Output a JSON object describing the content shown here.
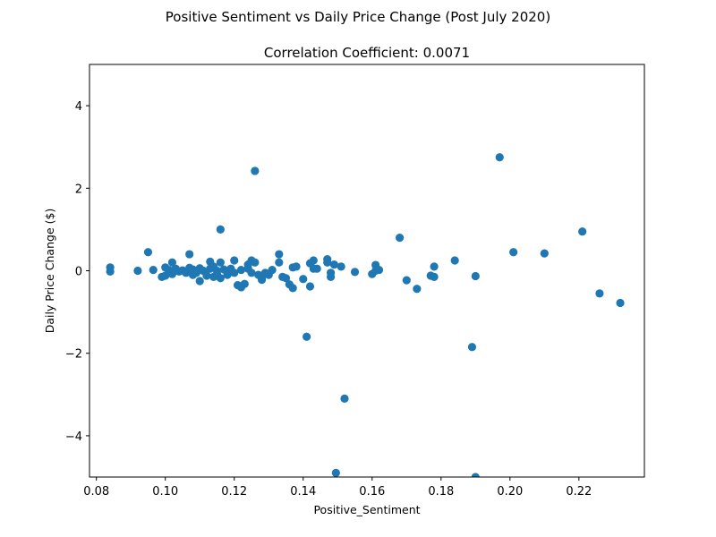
{
  "chart_data": {
    "type": "scatter",
    "suptitle": "Positive Sentiment vs Daily Price Change (Post July 2020)",
    "title": "Correlation Coefficient: 0.0071",
    "xlabel": "Positive_Sentiment",
    "ylabel": "Daily Price Change ($)",
    "xlim": [
      0.078,
      0.239
    ],
    "ylim": [
      -5,
      5
    ],
    "xticks": [
      0.08,
      0.1,
      0.12,
      0.14,
      0.16,
      0.18,
      0.2,
      0.22
    ],
    "xtick_labels": [
      "0.08",
      "0.10",
      "0.12",
      "0.14",
      "0.16",
      "0.18",
      "0.20",
      "0.22"
    ],
    "yticks": [
      -4,
      -2,
      0,
      2,
      4
    ],
    "ytick_labels": [
      "−4",
      "−2",
      "0",
      "2",
      "4"
    ],
    "grid": false,
    "marker_color": "#1f77b4",
    "points": [
      {
        "x": 0.084,
        "y": 0.08
      },
      {
        "x": 0.084,
        "y": -0.02
      },
      {
        "x": 0.092,
        "y": 0.0
      },
      {
        "x": 0.095,
        "y": 0.45
      },
      {
        "x": 0.0965,
        "y": 0.02
      },
      {
        "x": 0.099,
        "y": -0.15
      },
      {
        "x": 0.1,
        "y": 0.08
      },
      {
        "x": 0.1,
        "y": -0.12
      },
      {
        "x": 0.101,
        "y": 0.02
      },
      {
        "x": 0.102,
        "y": -0.08
      },
      {
        "x": 0.102,
        "y": 0.2
      },
      {
        "x": 0.103,
        "y": 0.05
      },
      {
        "x": 0.104,
        "y": -0.02
      },
      {
        "x": 0.105,
        "y": 0.01
      },
      {
        "x": 0.106,
        "y": -0.05
      },
      {
        "x": 0.107,
        "y": 0.07
      },
      {
        "x": 0.107,
        "y": 0.4
      },
      {
        "x": 0.108,
        "y": -0.1
      },
      {
        "x": 0.108,
        "y": 0.03
      },
      {
        "x": 0.109,
        "y": -0.05
      },
      {
        "x": 0.11,
        "y": 0.06
      },
      {
        "x": 0.11,
        "y": -0.25
      },
      {
        "x": 0.111,
        "y": 0.0
      },
      {
        "x": 0.112,
        "y": -0.12
      },
      {
        "x": 0.113,
        "y": 0.22
      },
      {
        "x": 0.113,
        "y": 0.05
      },
      {
        "x": 0.114,
        "y": -0.15
      },
      {
        "x": 0.114,
        "y": 0.1
      },
      {
        "x": 0.115,
        "y": 0.0
      },
      {
        "x": 0.115,
        "y": -0.08
      },
      {
        "x": 0.116,
        "y": 1.0
      },
      {
        "x": 0.116,
        "y": 0.2
      },
      {
        "x": 0.116,
        "y": -0.18
      },
      {
        "x": 0.117,
        "y": 0.03
      },
      {
        "x": 0.118,
        "y": -0.1
      },
      {
        "x": 0.119,
        "y": 0.05
      },
      {
        "x": 0.12,
        "y": 0.25
      },
      {
        "x": 0.12,
        "y": -0.05
      },
      {
        "x": 0.121,
        "y": -0.35
      },
      {
        "x": 0.122,
        "y": 0.02
      },
      {
        "x": 0.122,
        "y": -0.4
      },
      {
        "x": 0.123,
        "y": -0.32
      },
      {
        "x": 0.124,
        "y": 0.15
      },
      {
        "x": 0.124,
        "y": 0.05
      },
      {
        "x": 0.125,
        "y": 0.25
      },
      {
        "x": 0.125,
        "y": -0.05
      },
      {
        "x": 0.126,
        "y": 2.42
      },
      {
        "x": 0.126,
        "y": 0.2
      },
      {
        "x": 0.127,
        "y": -0.1
      },
      {
        "x": 0.128,
        "y": -0.15
      },
      {
        "x": 0.128,
        "y": -0.22
      },
      {
        "x": 0.129,
        "y": -0.05
      },
      {
        "x": 0.13,
        "y": -0.1
      },
      {
        "x": 0.131,
        "y": 0.02
      },
      {
        "x": 0.133,
        "y": 0.4
      },
      {
        "x": 0.133,
        "y": 0.2
      },
      {
        "x": 0.134,
        "y": -0.15
      },
      {
        "x": 0.135,
        "y": -0.18
      },
      {
        "x": 0.136,
        "y": -0.33
      },
      {
        "x": 0.137,
        "y": -0.42
      },
      {
        "x": 0.137,
        "y": 0.08
      },
      {
        "x": 0.138,
        "y": 0.1
      },
      {
        "x": 0.14,
        "y": -0.2
      },
      {
        "x": 0.141,
        "y": -1.6
      },
      {
        "x": 0.142,
        "y": 0.18
      },
      {
        "x": 0.142,
        "y": -0.38
      },
      {
        "x": 0.143,
        "y": 0.05
      },
      {
        "x": 0.143,
        "y": 0.25
      },
      {
        "x": 0.144,
        "y": 0.05
      },
      {
        "x": 0.147,
        "y": 0.28
      },
      {
        "x": 0.147,
        "y": 0.2
      },
      {
        "x": 0.148,
        "y": -0.15
      },
      {
        "x": 0.148,
        "y": -0.05
      },
      {
        "x": 0.149,
        "y": 0.15
      },
      {
        "x": 0.1495,
        "y": -4.9
      },
      {
        "x": 0.151,
        "y": 0.1
      },
      {
        "x": 0.152,
        "y": -3.1
      },
      {
        "x": 0.155,
        "y": -0.03
      },
      {
        "x": 0.16,
        "y": -0.08
      },
      {
        "x": 0.161,
        "y": 0.0
      },
      {
        "x": 0.161,
        "y": 0.14
      },
      {
        "x": 0.162,
        "y": 0.02
      },
      {
        "x": 0.168,
        "y": 0.8
      },
      {
        "x": 0.17,
        "y": -0.23
      },
      {
        "x": 0.173,
        "y": -0.44
      },
      {
        "x": 0.177,
        "y": -0.12
      },
      {
        "x": 0.178,
        "y": 0.1
      },
      {
        "x": 0.178,
        "y": -0.15
      },
      {
        "x": 0.184,
        "y": 0.25
      },
      {
        "x": 0.189,
        "y": -1.85
      },
      {
        "x": 0.19,
        "y": -0.13
      },
      {
        "x": 0.19,
        "y": -5.0
      },
      {
        "x": 0.197,
        "y": 2.75
      },
      {
        "x": 0.201,
        "y": 0.45
      },
      {
        "x": 0.21,
        "y": 0.42
      },
      {
        "x": 0.221,
        "y": 0.95
      },
      {
        "x": 0.226,
        "y": -0.55
      },
      {
        "x": 0.232,
        "y": -0.78
      }
    ]
  }
}
